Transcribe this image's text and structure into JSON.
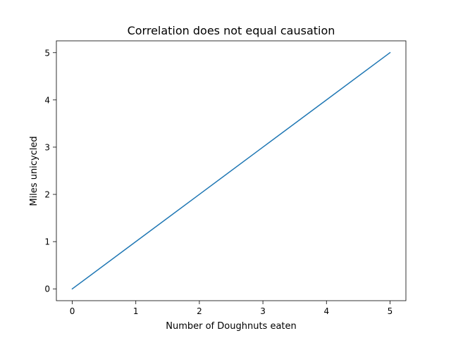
{
  "chart_data": {
    "type": "line",
    "title": "Correlation does not equal causation",
    "xlabel": "Number of Doughnuts eaten",
    "ylabel": "Miles unicycled",
    "x": [
      0,
      1,
      2,
      3,
      4,
      5
    ],
    "series": [
      {
        "values": [
          0,
          1,
          2,
          3,
          4,
          5
        ],
        "color": "#1f77b4"
      }
    ],
    "xlim": [
      -0.25,
      5.25
    ],
    "ylim": [
      -0.25,
      5.25
    ],
    "xticks": [
      "0",
      "1",
      "2",
      "3",
      "4",
      "5"
    ],
    "yticks": [
      "0",
      "1",
      "2",
      "3",
      "4",
      "5"
    ],
    "grid": false,
    "legend": "none"
  }
}
